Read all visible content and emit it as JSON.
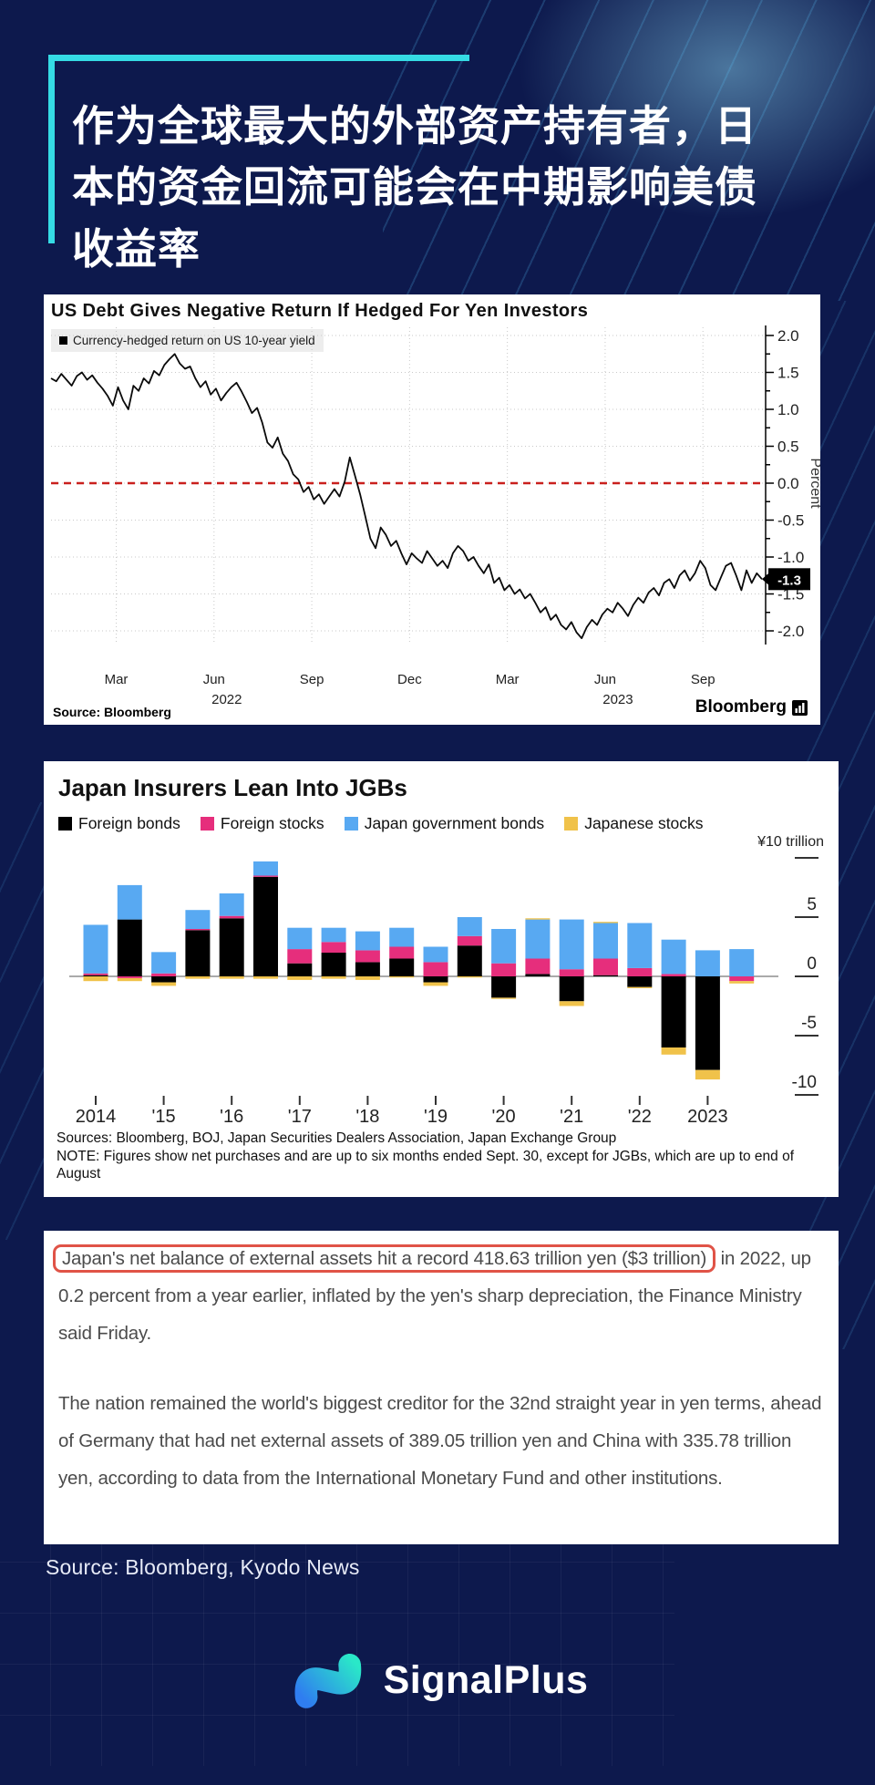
{
  "theme": {
    "background": "#0d194d",
    "accent_teal": "#35dbe4",
    "panel": "#ffffff",
    "highlight_red": "#e05347"
  },
  "headline": {
    "text": "作为全球最大的外部资产持有者，日本的资金回流可能会在中期影响美债收益率"
  },
  "article": {
    "highlight": "Japan's net balance of external assets hit a record 418.63 trillion yen ($3 trillion)",
    "p1_rest": " in 2022, up 0.2 percent from a year earlier, inflated by the yen's sharp depreciation, the Finance Ministry said Friday.",
    "p2": "The nation remained the world's biggest creditor for the 32nd straight year in yen terms, ahead of Germany that had net external assets of 389.05 trillion yen and China with 335.78 trillion yen, according to data from the International Monetary Fund and other institutions."
  },
  "footer": {
    "source": "Source: Bloomberg, Kyodo News",
    "logo_text": "SignalPlus"
  },
  "chart_data": [
    {
      "type": "line",
      "title": "US Debt Gives Negative Return If Hedged For Yen Investors",
      "ylabel": "Percent",
      "ylim": [
        -2.25,
        2.25
      ],
      "yticks": [
        2.0,
        1.5,
        1.0,
        0.5,
        0.0,
        -0.5,
        -1.0,
        -1.5,
        -2.0
      ],
      "zero_line_color": "#c9201d",
      "line_color": "#0a0a0a",
      "grid": true,
      "x_range": [
        "Jan 2022",
        "Oct 2023"
      ],
      "months_total": 21.7,
      "x_ticks": [
        {
          "label": "Mar",
          "m": 2
        },
        {
          "label": "Jun",
          "m": 5,
          "year": "2022"
        },
        {
          "label": "Sep",
          "m": 8
        },
        {
          "label": "Dec",
          "m": 11
        },
        {
          "label": "Mar",
          "m": 14
        },
        {
          "label": "Jun",
          "m": 17,
          "year": "2023"
        },
        {
          "label": "Sep",
          "m": 20
        }
      ],
      "last_label": "-1.3",
      "source": "Source: Bloomberg",
      "brand": "Bloomberg",
      "series": [
        {
          "name": "Currency-hedged return on US 10-year yield",
          "values": [
            1.42,
            1.38,
            1.48,
            1.4,
            1.32,
            1.45,
            1.5,
            1.4,
            1.46,
            1.36,
            1.28,
            1.18,
            1.05,
            1.3,
            1.12,
            1.0,
            1.32,
            1.25,
            1.42,
            1.35,
            1.52,
            1.46,
            1.6,
            1.68,
            1.75,
            1.62,
            1.55,
            1.58,
            1.42,
            1.3,
            1.38,
            1.2,
            1.28,
            1.12,
            1.22,
            1.3,
            1.36,
            1.24,
            1.1,
            0.95,
            1.02,
            0.82,
            0.55,
            0.48,
            0.62,
            0.4,
            0.3,
            0.12,
            0.05,
            -0.12,
            -0.05,
            -0.22,
            -0.15,
            -0.28,
            -0.18,
            -0.08,
            -0.18,
            0.02,
            0.35,
            0.1,
            -0.15,
            -0.45,
            -0.75,
            -0.88,
            -0.6,
            -0.7,
            -0.85,
            -0.78,
            -0.95,
            -1.1,
            -0.95,
            -1.02,
            -1.08,
            -0.92,
            -1.02,
            -1.12,
            -1.05,
            -1.15,
            -0.95,
            -0.85,
            -0.92,
            -1.05,
            -1.0,
            -1.12,
            -1.22,
            -1.1,
            -1.35,
            -1.28,
            -1.45,
            -1.38,
            -1.5,
            -1.44,
            -1.56,
            -1.5,
            -1.62,
            -1.75,
            -1.68,
            -1.85,
            -1.78,
            -1.92,
            -1.98,
            -1.88,
            -2.02,
            -2.1,
            -1.95,
            -1.85,
            -1.92,
            -1.78,
            -1.7,
            -1.75,
            -1.62,
            -1.7,
            -1.8,
            -1.65,
            -1.55,
            -1.62,
            -1.48,
            -1.42,
            -1.52,
            -1.35,
            -1.3,
            -1.42,
            -1.25,
            -1.18,
            -1.32,
            -1.22,
            -1.05,
            -1.15,
            -1.38,
            -1.45,
            -1.28,
            -1.12,
            -1.08,
            -1.25,
            -1.45,
            -1.18,
            -1.35,
            -1.22,
            -1.3
          ]
        }
      ]
    },
    {
      "type": "bar",
      "stacked": true,
      "title": "Japan Insurers Lean Into JGBs",
      "unit": "¥10 trillion",
      "yticks": [
        5,
        0,
        -5,
        -10
      ],
      "dash_values": [
        10,
        5,
        0,
        -5,
        -10
      ],
      "categories": [
        "2014",
        "'15",
        "'16",
        "'17",
        "'18",
        "'19",
        "'20",
        "'21",
        "'22",
        "2023"
      ],
      "bars_per_year": 2,
      "series": [
        {
          "name": "Foreign bonds",
          "color": "#000000",
          "values": [
            0.1,
            4.8,
            -0.5,
            3.9,
            4.9,
            8.4,
            1.1,
            2.0,
            1.2,
            1.5,
            -0.5,
            2.6,
            -1.8,
            0.2,
            -2.1,
            0.1,
            -0.9,
            -6.0,
            -7.9,
            0.0
          ]
        },
        {
          "name": "Foreign stocks",
          "color": "#e62e7c",
          "values": [
            0.15,
            -0.15,
            0.25,
            0.1,
            0.2,
            0.1,
            1.2,
            0.9,
            1.0,
            1.0,
            1.2,
            0.8,
            1.1,
            1.3,
            0.6,
            1.4,
            0.7,
            0.2,
            0.0,
            -0.4
          ]
        },
        {
          "name": "Japan government bonds",
          "color": "#58a9f2",
          "values": [
            4.1,
            2.9,
            1.8,
            1.6,
            1.9,
            1.2,
            1.8,
            1.2,
            1.6,
            1.6,
            1.3,
            1.6,
            2.9,
            3.3,
            4.2,
            3.0,
            3.8,
            2.9,
            2.2,
            2.3
          ]
        },
        {
          "name": "Japanese stocks",
          "color": "#f0c24a",
          "values": [
            -0.4,
            -0.25,
            -0.3,
            -0.2,
            -0.2,
            -0.2,
            -0.3,
            -0.2,
            -0.3,
            -0.1,
            -0.3,
            -0.1,
            -0.1,
            0.1,
            -0.4,
            0.1,
            -0.1,
            -0.6,
            -0.8,
            -0.2
          ]
        }
      ],
      "sources": "Sources: Bloomberg, BOJ, Japan Securities Dealers Association, Japan Exchange Group",
      "note": "NOTE: Figures show net purchases and are up to six months ended Sept. 30, except for JGBs, which are up to end of August"
    }
  ]
}
